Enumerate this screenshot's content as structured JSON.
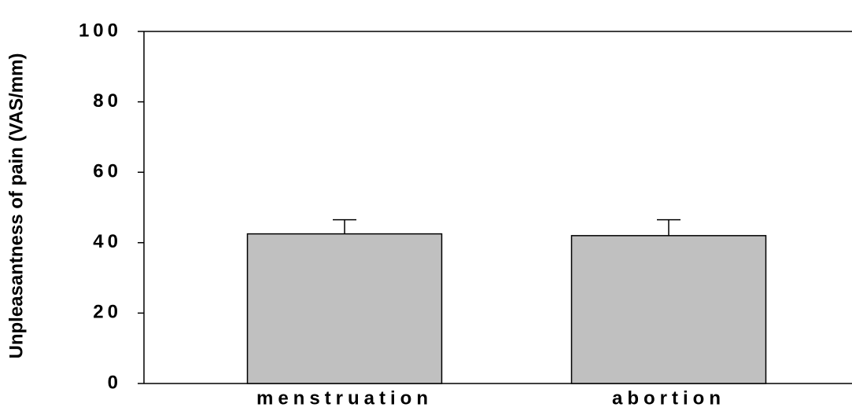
{
  "chart_data": {
    "type": "bar",
    "ylabel": "Unpleasantness of pain (VAS/mm)",
    "categories": [
      "menstruation",
      "abortion"
    ],
    "values": [
      42.5,
      42
    ],
    "errors": [
      4,
      4.5
    ],
    "color": "#c0c0c0",
    "ylim": [
      0,
      100
    ],
    "yticks": [
      0,
      20,
      40,
      60,
      80,
      100
    ]
  }
}
